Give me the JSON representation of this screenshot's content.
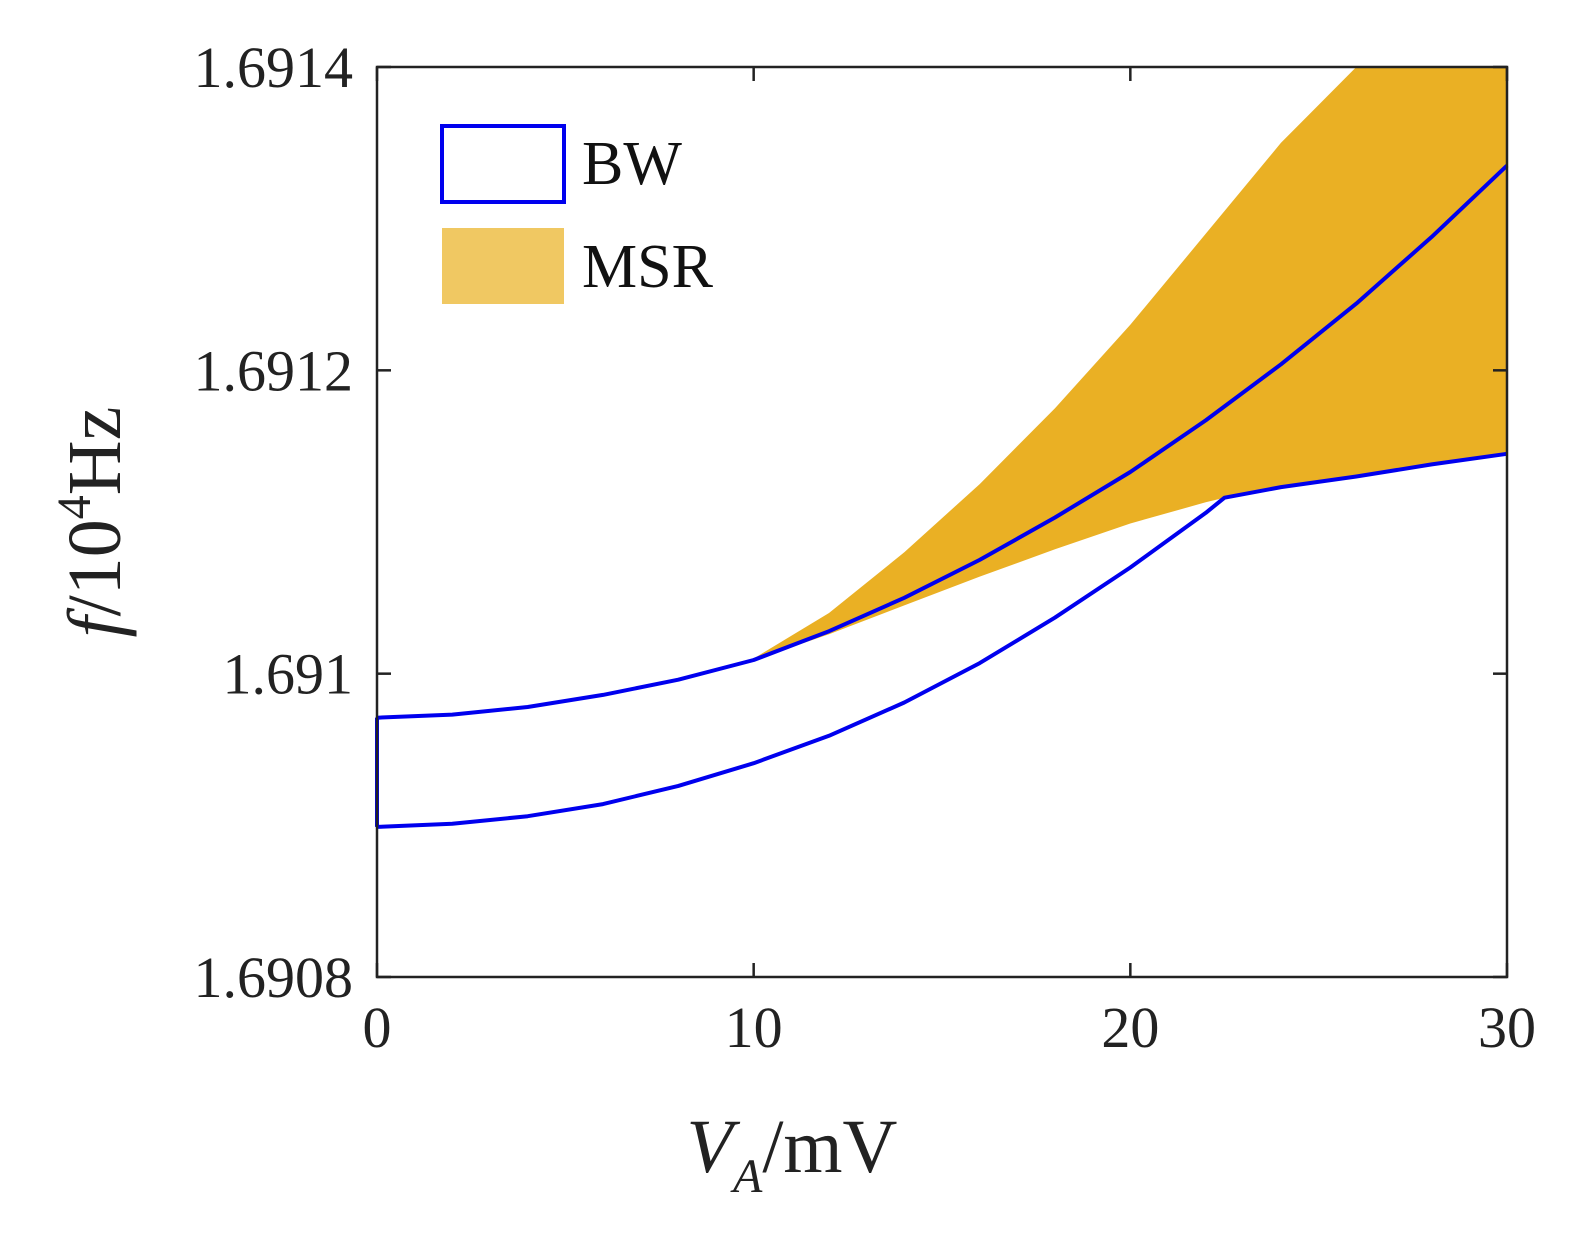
{
  "chart_data": {
    "type": "area",
    "xlabel": {
      "main": "V",
      "subscript": "A",
      "unit": "/mV"
    },
    "ylabel": {
      "main": "f",
      "unit_prefix": "/10",
      "exponent": "4",
      "unit": "Hz"
    },
    "xlim": [
      0,
      30
    ],
    "ylim": [
      1.6908,
      1.6914
    ],
    "xticks": [
      0,
      10,
      20,
      30
    ],
    "xtick_labels": [
      "0",
      "10",
      "20",
      "30"
    ],
    "yticks": [
      1.6908,
      1.691,
      1.6912,
      1.6914
    ],
    "ytick_labels": [
      "1.6908",
      "1.691",
      "1.6912",
      "1.6914"
    ],
    "grid": false,
    "legend_position": "top-left",
    "series": [
      {
        "name": "BW",
        "kind": "outline",
        "color": "#0000ee",
        "upper": {
          "x": [
            0,
            2,
            4,
            6,
            8,
            10,
            12,
            14,
            16,
            18,
            20,
            22,
            24,
            26,
            28,
            30
          ],
          "y": [
            1.690971,
            1.690973,
            1.690978,
            1.690986,
            1.690996,
            1.691009,
            1.691028,
            1.69105,
            1.691075,
            1.691103,
            1.691133,
            1.691167,
            1.691204,
            1.691244,
            1.691288,
            1.691335
          ]
        },
        "lower": {
          "x": [
            0,
            2,
            4,
            6,
            8,
            10,
            12,
            14,
            16,
            18,
            20,
            22,
            22.5,
            24,
            26,
            28,
            30
          ],
          "y": [
            1.690899,
            1.690901,
            1.690906,
            1.690914,
            1.690926,
            1.690941,
            1.690959,
            1.690981,
            1.691007,
            1.691037,
            1.69107,
            1.691106,
            1.691116,
            1.691123,
            1.69113,
            1.691138,
            1.691145
          ]
        }
      },
      {
        "name": "MSR",
        "kind": "fill",
        "color": "#eab024",
        "legend_color": "#f0c862",
        "upper": {
          "x": [
            9.8,
            12,
            14,
            16,
            18,
            20,
            22,
            24,
            26,
            27.1
          ],
          "y": [
            1.691007,
            1.69104,
            1.69108,
            1.691125,
            1.691175,
            1.69123,
            1.69129,
            1.69135,
            1.69141,
            1.6914
          ]
        },
        "lower": {
          "x": [
            9.8,
            12,
            14,
            16,
            18,
            20,
            22,
            22.5,
            24,
            26,
            28,
            30
          ],
          "y": [
            1.691007,
            1.691026,
            1.691045,
            1.691064,
            1.691082,
            1.691099,
            1.691113,
            1.691116,
            1.691123,
            1.69113,
            1.691138,
            1.691145
          ]
        },
        "upper_clipped_top_from_x": 27.1
      }
    ]
  }
}
